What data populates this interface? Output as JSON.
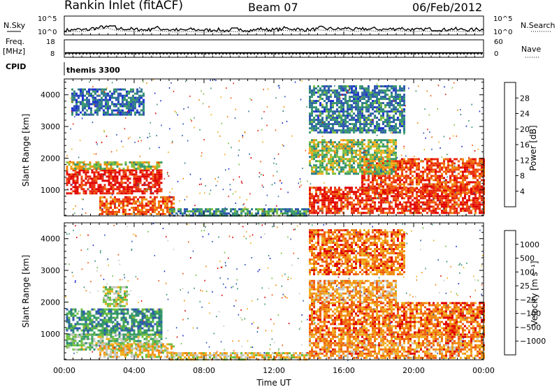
{
  "header": {
    "station": "Rankin Inlet (fitACF)",
    "beam": "Beam 07",
    "date": "06/Feb/2012"
  },
  "left_labels": {
    "nsky": "N.Sky",
    "freq": "Freq.",
    "mhz": "[MHz]",
    "cpid": "CPID"
  },
  "right_labels": {
    "nsearch": "N.Search",
    "nave": "Nave"
  },
  "cpid_text": "themis 3300",
  "x_axis": {
    "label": "Time UT",
    "ticks": [
      "00:00",
      "04:00",
      "08:00",
      "12:00",
      "16:00",
      "20:00",
      "00:00"
    ]
  },
  "chart_data": [
    {
      "type": "line",
      "panel": "noise",
      "left_ticks": [
        "10^5",
        "10^0"
      ],
      "right_ticks": [
        "10^5",
        "10^0"
      ],
      "ylim_log10": [
        0,
        5
      ],
      "series_names": [
        "N.Sky",
        "N.Search"
      ],
      "x_hours": [
        0,
        0.5,
        1,
        1.5,
        2,
        2.5,
        3,
        3.5,
        4,
        4.5,
        5,
        5.5,
        6,
        6.5,
        7,
        7.5,
        8,
        8.5,
        9,
        9.5,
        10,
        10.5,
        11,
        11.5,
        12,
        12.5,
        13,
        13.5,
        14,
        14.5,
        15,
        15.5,
        16,
        16.5,
        17,
        17.5,
        18,
        18.5,
        19,
        19.5,
        20,
        20.5,
        21,
        21.5,
        22,
        22.5,
        23,
        23.5,
        24
      ],
      "nsky_log10": [
        1.1,
        1.3,
        1.2,
        1.6,
        1.9,
        2.1,
        1.5,
        1.4,
        1.3,
        1.2,
        1.7,
        1.4,
        1.2,
        1.1,
        1.3,
        1.2,
        1.1,
        1.2,
        1.0,
        1.3,
        1.2,
        1.1,
        1.4,
        1.2,
        1.3,
        1.6,
        1.4,
        1.2,
        1.3,
        1.7,
        1.5,
        1.4,
        1.6,
        1.3,
        1.4,
        1.5,
        1.3,
        1.4,
        1.6,
        1.3,
        1.2,
        1.4,
        1.3,
        1.2,
        1.4,
        1.3,
        1.2,
        1.3,
        1.2
      ]
    },
    {
      "type": "line",
      "panel": "frequency",
      "left_ticks": [
        "18",
        "8"
      ],
      "right_ticks": [
        "60",
        "0"
      ],
      "ylim_mhz": [
        8,
        18
      ],
      "ylim_nave": [
        0,
        60
      ],
      "series_names": [
        "Freq.",
        "Nave"
      ],
      "freq_mhz": 10.5,
      "nave": 12
    },
    {
      "type": "heatmap",
      "panel": "power",
      "xlim_hours": [
        0,
        24
      ],
      "ylim_km": [
        180,
        4500
      ],
      "ylabel": "Slant Range [km]",
      "y_ticks": [
        1000,
        2000,
        3000,
        4000
      ],
      "colorbar": {
        "label": "Power [dB]",
        "ticks": [
          "4",
          "8",
          "12",
          "16",
          "20",
          "24",
          "28"
        ],
        "colors": [
          "#1c2fd0",
          "#2f56b0",
          "#2f7d8c",
          "#3a9a6a",
          "#7fc040",
          "#f0b020",
          "#f08a10",
          "#ef5a10",
          "#e82a10",
          "#e00000"
        ]
      },
      "regions": [
        {
          "t0": 0.1,
          "t1": 5.6,
          "r0": 900,
          "r1": 1650,
          "level": 0.9
        },
        {
          "t0": 0.1,
          "t1": 5.6,
          "r0": 1650,
          "r1": 1900,
          "level": 0.5
        },
        {
          "t0": 2.0,
          "t1": 6.2,
          "r0": 250,
          "r1": 800,
          "level": 0.75
        },
        {
          "t0": 6.0,
          "t1": 14.0,
          "r0": 200,
          "r1": 420,
          "level": 0.3
        },
        {
          "t0": 14.0,
          "t1": 24.0,
          "r0": 250,
          "r1": 1100,
          "level": 0.85
        },
        {
          "t0": 17.0,
          "t1": 24.0,
          "r0": 900,
          "r1": 2000,
          "level": 0.8
        },
        {
          "t0": 14.0,
          "t1": 19.0,
          "r0": 1500,
          "r1": 2600,
          "level": 0.45
        },
        {
          "t0": 14.0,
          "t1": 19.5,
          "r0": 2800,
          "r1": 4300,
          "level": 0.25
        },
        {
          "t0": 0.4,
          "t1": 4.5,
          "r0": 3400,
          "r1": 4200,
          "level": 0.2
        }
      ]
    },
    {
      "type": "heatmap",
      "panel": "velocity",
      "xlim_hours": [
        0,
        24
      ],
      "ylim_km": [
        180,
        4500
      ],
      "ylabel": "Slant Range [km]",
      "y_ticks": [
        1000,
        2000,
        3000,
        4000
      ],
      "colorbar": {
        "label": "Velocity [m s⁻¹]",
        "ticks": [
          "1000",
          "500",
          "100",
          "25",
          "−25",
          "−100",
          "−500",
          "−1000"
        ],
        "colors": [
          "#1c2fd0",
          "#2f56b0",
          "#2f8a78",
          "#3aa060",
          "#70c040",
          "#c8c8c0",
          "#f0b020",
          "#f08a10",
          "#ef5a10",
          "#e00000"
        ]
      },
      "regions": [
        {
          "t0": 0.1,
          "t1": 5.6,
          "r0": 1000,
          "r1": 1800,
          "level": 0.3
        },
        {
          "t0": 0.1,
          "t1": 5.6,
          "r0": 500,
          "r1": 1000,
          "level": 0.45
        },
        {
          "t0": 2.0,
          "t1": 6.2,
          "r0": 250,
          "r1": 700,
          "level": 0.6
        },
        {
          "t0": 6.0,
          "t1": 14.0,
          "r0": 200,
          "r1": 420,
          "level": 0.6
        },
        {
          "t0": 14.0,
          "t1": 24.0,
          "r0": 250,
          "r1": 1000,
          "level": 0.75
        },
        {
          "t0": 14.0,
          "t1": 24.0,
          "r0": 1000,
          "r1": 2000,
          "level": 0.8
        },
        {
          "t0": 14.0,
          "t1": 19.0,
          "r0": 2000,
          "r1": 2700,
          "level": 0.7
        },
        {
          "t0": 14.0,
          "t1": 19.5,
          "r0": 2900,
          "r1": 4300,
          "level": 0.8
        },
        {
          "t0": 2.2,
          "t1": 3.6,
          "r0": 1900,
          "r1": 2500,
          "level": 0.5
        }
      ]
    }
  ]
}
